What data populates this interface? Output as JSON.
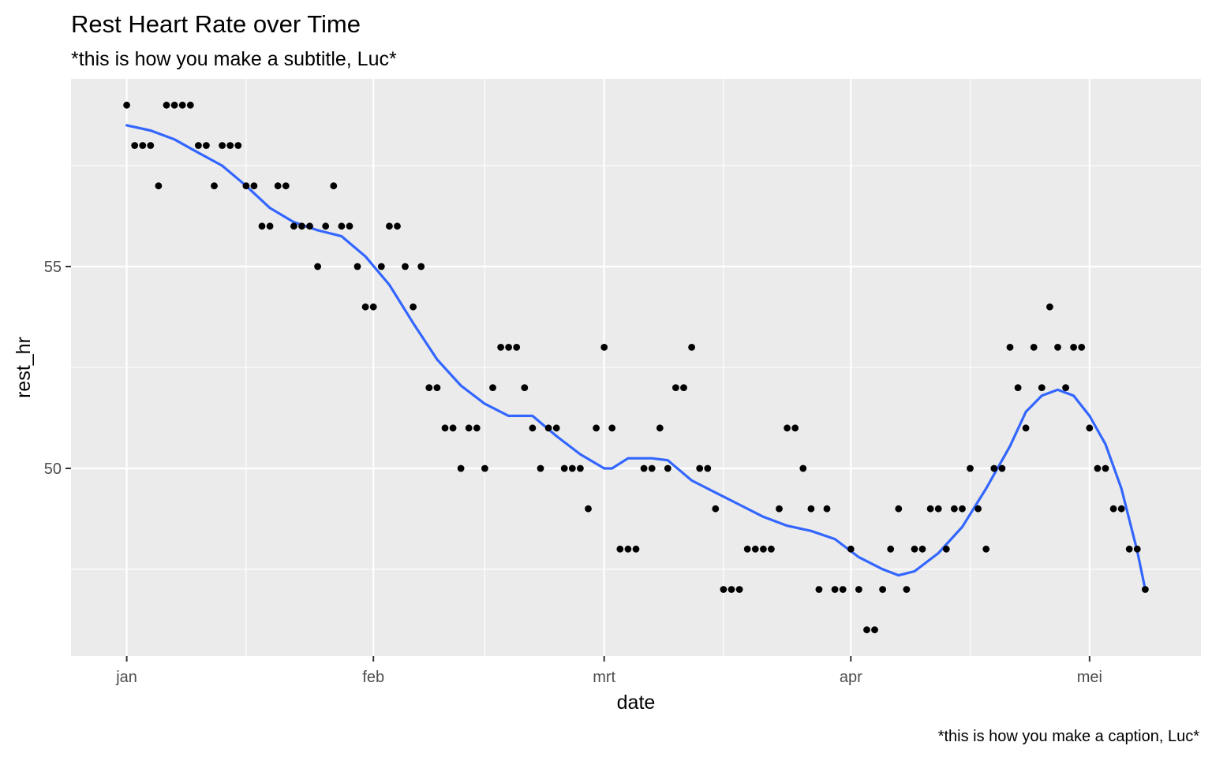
{
  "chart_data": {
    "type": "scatter",
    "title": "Rest Heart Rate over Time",
    "subtitle": "*this is how you make a subtitle, Luc*",
    "caption": "*this is how you make a caption, Luc*",
    "xlabel": "date",
    "ylabel": "rest_hr",
    "x_ticks": [
      {
        "date": "2020-01-01",
        "label": "jan"
      },
      {
        "date": "2020-02-01",
        "label": "feb"
      },
      {
        "date": "2020-03-01",
        "label": "mrt"
      },
      {
        "date": "2020-04-01",
        "label": "apr"
      },
      {
        "date": "2020-05-01",
        "label": "mei"
      }
    ],
    "x_minor_ticks": [
      "2020-01-16",
      "2020-02-15",
      "2020-03-16",
      "2020-04-16"
    ],
    "y_ticks": [
      50,
      55
    ],
    "y_minor_ticks": [
      47.5,
      52.5,
      57.5
    ],
    "xlim": [
      "2019-12-25",
      "2020-05-15"
    ],
    "ylim": [
      45.35,
      59.65
    ],
    "grid": true,
    "colors": {
      "panel": "#ebebeb",
      "grid": "#ffffff",
      "points": "#000000",
      "smooth": "#3366ff"
    },
    "series": [
      {
        "type": "points",
        "points": [
          [
            "2020-01-01",
            59
          ],
          [
            "2020-01-02",
            58
          ],
          [
            "2020-01-03",
            58
          ],
          [
            "2020-01-04",
            58
          ],
          [
            "2020-01-05",
            57
          ],
          [
            "2020-01-06",
            59
          ],
          [
            "2020-01-07",
            59
          ],
          [
            "2020-01-08",
            59
          ],
          [
            "2020-01-09",
            59
          ],
          [
            "2020-01-10",
            58
          ],
          [
            "2020-01-11",
            58
          ],
          [
            "2020-01-12",
            57
          ],
          [
            "2020-01-13",
            58
          ],
          [
            "2020-01-14",
            58
          ],
          [
            "2020-01-15",
            58
          ],
          [
            "2020-01-16",
            57
          ],
          [
            "2020-01-17",
            57
          ],
          [
            "2020-01-18",
            56
          ],
          [
            "2020-01-19",
            56
          ],
          [
            "2020-01-20",
            57
          ],
          [
            "2020-01-21",
            57
          ],
          [
            "2020-01-22",
            56
          ],
          [
            "2020-01-23",
            56
          ],
          [
            "2020-01-24",
            56
          ],
          [
            "2020-01-25",
            55
          ],
          [
            "2020-01-26",
            56
          ],
          [
            "2020-01-27",
            57
          ],
          [
            "2020-01-28",
            56
          ],
          [
            "2020-01-29",
            56
          ],
          [
            "2020-01-30",
            55
          ],
          [
            "2020-01-31",
            54
          ],
          [
            "2020-02-01",
            54
          ],
          [
            "2020-02-02",
            55
          ],
          [
            "2020-02-03",
            56
          ],
          [
            "2020-02-04",
            56
          ],
          [
            "2020-02-05",
            55
          ],
          [
            "2020-02-06",
            54
          ],
          [
            "2020-02-07",
            55
          ],
          [
            "2020-02-08",
            52
          ],
          [
            "2020-02-09",
            52
          ],
          [
            "2020-02-10",
            51
          ],
          [
            "2020-02-11",
            51
          ],
          [
            "2020-02-12",
            50
          ],
          [
            "2020-02-13",
            51
          ],
          [
            "2020-02-14",
            51
          ],
          [
            "2020-02-15",
            50
          ],
          [
            "2020-02-16",
            52
          ],
          [
            "2020-02-17",
            53
          ],
          [
            "2020-02-18",
            53
          ],
          [
            "2020-02-19",
            53
          ],
          [
            "2020-02-20",
            52
          ],
          [
            "2020-02-21",
            51
          ],
          [
            "2020-02-22",
            50
          ],
          [
            "2020-02-23",
            51
          ],
          [
            "2020-02-24",
            51
          ],
          [
            "2020-02-25",
            50
          ],
          [
            "2020-02-26",
            50
          ],
          [
            "2020-02-27",
            50
          ],
          [
            "2020-02-28",
            49
          ],
          [
            "2020-02-29",
            51
          ],
          [
            "2020-03-01",
            53
          ],
          [
            "2020-03-02",
            51
          ],
          [
            "2020-03-03",
            48
          ],
          [
            "2020-03-04",
            48
          ],
          [
            "2020-03-05",
            48
          ],
          [
            "2020-03-06",
            50
          ],
          [
            "2020-03-07",
            50
          ],
          [
            "2020-03-08",
            51
          ],
          [
            "2020-03-09",
            50
          ],
          [
            "2020-03-10",
            52
          ],
          [
            "2020-03-11",
            52
          ],
          [
            "2020-03-12",
            53
          ],
          [
            "2020-03-13",
            50
          ],
          [
            "2020-03-14",
            50
          ],
          [
            "2020-03-15",
            49
          ],
          [
            "2020-03-16",
            47
          ],
          [
            "2020-03-17",
            47
          ],
          [
            "2020-03-18",
            47
          ],
          [
            "2020-03-19",
            48
          ],
          [
            "2020-03-20",
            48
          ],
          [
            "2020-03-21",
            48
          ],
          [
            "2020-03-22",
            48
          ],
          [
            "2020-03-23",
            49
          ],
          [
            "2020-03-24",
            51
          ],
          [
            "2020-03-25",
            51
          ],
          [
            "2020-03-26",
            50
          ],
          [
            "2020-03-27",
            49
          ],
          [
            "2020-03-28",
            47
          ],
          [
            "2020-03-29",
            49
          ],
          [
            "2020-03-30",
            47
          ],
          [
            "2020-03-31",
            47
          ],
          [
            "2020-04-01",
            48
          ],
          [
            "2020-04-02",
            47
          ],
          [
            "2020-04-03",
            46
          ],
          [
            "2020-04-04",
            46
          ],
          [
            "2020-04-05",
            47
          ],
          [
            "2020-04-06",
            48
          ],
          [
            "2020-04-07",
            49
          ],
          [
            "2020-04-08",
            47
          ],
          [
            "2020-04-09",
            48
          ],
          [
            "2020-04-10",
            48
          ],
          [
            "2020-04-11",
            49
          ],
          [
            "2020-04-12",
            49
          ],
          [
            "2020-04-13",
            48
          ],
          [
            "2020-04-14",
            49
          ],
          [
            "2020-04-15",
            49
          ],
          [
            "2020-04-16",
            50
          ],
          [
            "2020-04-17",
            49
          ],
          [
            "2020-04-18",
            48
          ],
          [
            "2020-04-19",
            50
          ],
          [
            "2020-04-20",
            50
          ],
          [
            "2020-04-21",
            53
          ],
          [
            "2020-04-22",
            52
          ],
          [
            "2020-04-23",
            51
          ],
          [
            "2020-04-24",
            53
          ],
          [
            "2020-04-25",
            52
          ],
          [
            "2020-04-26",
            54
          ],
          [
            "2020-04-27",
            53
          ],
          [
            "2020-04-28",
            52
          ],
          [
            "2020-04-29",
            53
          ],
          [
            "2020-04-30",
            53
          ],
          [
            "2020-05-01",
            51
          ],
          [
            "2020-05-02",
            50
          ],
          [
            "2020-05-03",
            50
          ],
          [
            "2020-05-04",
            49
          ],
          [
            "2020-05-05",
            49
          ],
          [
            "2020-05-06",
            48
          ],
          [
            "2020-05-07",
            48
          ],
          [
            "2020-05-08",
            47
          ]
        ]
      },
      {
        "type": "smooth",
        "points": [
          [
            "2020-01-01",
            58.5
          ],
          [
            "2020-01-04",
            58.37
          ],
          [
            "2020-01-07",
            58.15
          ],
          [
            "2020-01-10",
            57.82
          ],
          [
            "2020-01-13",
            57.5
          ],
          [
            "2020-01-16",
            57.0
          ],
          [
            "2020-01-19",
            56.45
          ],
          [
            "2020-01-22",
            56.1
          ],
          [
            "2020-01-25",
            55.9
          ],
          [
            "2020-01-28",
            55.75
          ],
          [
            "2020-01-31",
            55.25
          ],
          [
            "2020-02-03",
            54.55
          ],
          [
            "2020-02-06",
            53.6
          ],
          [
            "2020-02-09",
            52.7
          ],
          [
            "2020-02-12",
            52.05
          ],
          [
            "2020-02-15",
            51.6
          ],
          [
            "2020-02-18",
            51.3
          ],
          [
            "2020-02-21",
            51.3
          ],
          [
            "2020-02-24",
            50.8
          ],
          [
            "2020-02-27",
            50.35
          ],
          [
            "2020-03-01",
            50.0
          ],
          [
            "2020-03-02",
            50.0
          ],
          [
            "2020-03-04",
            50.25
          ],
          [
            "2020-03-07",
            50.25
          ],
          [
            "2020-03-09",
            50.2
          ],
          [
            "2020-03-12",
            49.7
          ],
          [
            "2020-03-15",
            49.4
          ],
          [
            "2020-03-18",
            49.1
          ],
          [
            "2020-03-21",
            48.8
          ],
          [
            "2020-03-24",
            48.58
          ],
          [
            "2020-03-27",
            48.45
          ],
          [
            "2020-03-30",
            48.25
          ],
          [
            "2020-04-02",
            47.8
          ],
          [
            "2020-04-05",
            47.5
          ],
          [
            "2020-04-07",
            47.35
          ],
          [
            "2020-04-09",
            47.45
          ],
          [
            "2020-04-12",
            47.9
          ],
          [
            "2020-04-15",
            48.55
          ],
          [
            "2020-04-18",
            49.5
          ],
          [
            "2020-04-21",
            50.55
          ],
          [
            "2020-04-23",
            51.4
          ],
          [
            "2020-04-25",
            51.8
          ],
          [
            "2020-04-27",
            51.95
          ],
          [
            "2020-04-29",
            51.8
          ],
          [
            "2020-05-01",
            51.3
          ],
          [
            "2020-05-03",
            50.6
          ],
          [
            "2020-05-05",
            49.5
          ],
          [
            "2020-05-07",
            47.95
          ],
          [
            "2020-05-08",
            47.0
          ]
        ]
      }
    ]
  }
}
